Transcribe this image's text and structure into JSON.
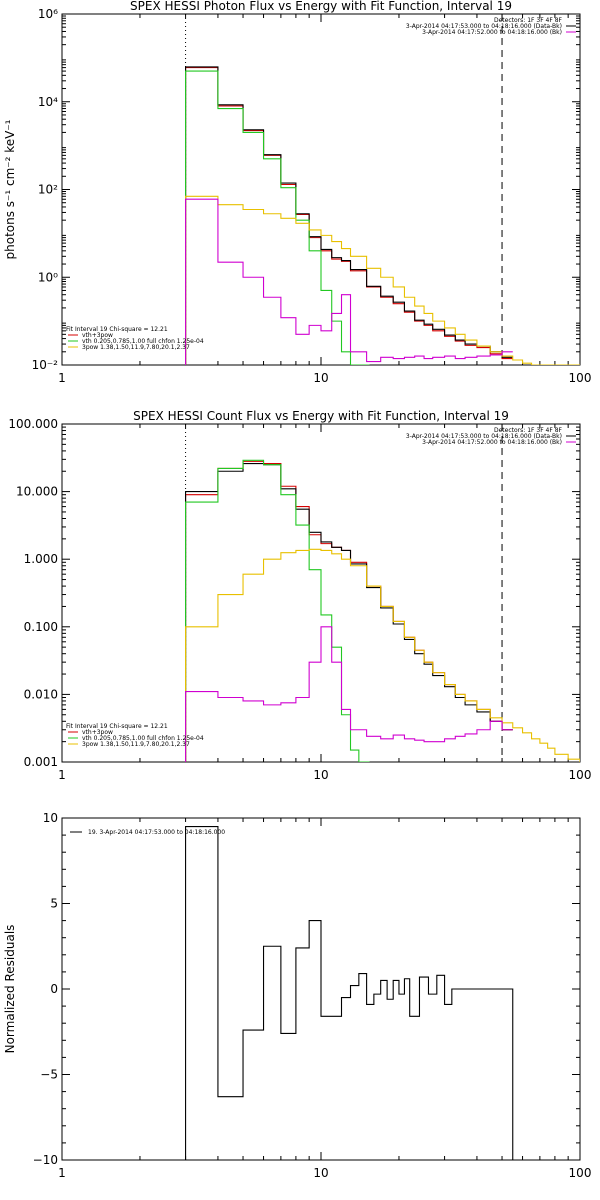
{
  "chart_data": [
    {
      "type": "line",
      "title": "SPEX HESSI Photon Flux vs Energy with Fit Function, Interval 19",
      "xlabel": "",
      "ylabel": "photons s⁻¹ cm⁻² keV⁻¹",
      "xscale": "log",
      "yscale": "log",
      "xlim": [
        1,
        100
      ],
      "ylim": [
        0.01,
        1000000
      ],
      "xticks": [
        "1",
        "10",
        "100"
      ],
      "yticks": [
        "10⁻²",
        "10⁰",
        "10²",
        "10⁴",
        "10⁶"
      ],
      "vlines": {
        "dotted": 3,
        "dashed": 50
      },
      "legend_right": [
        "Detectors: 1F 3F 4F 8F",
        "3-Apr-2014 04:17:53.000 to 04:18:16.000 (Data-Bk)",
        "3-Apr-2014 04:17:52.000 to 04:18:16.000 (Bk)"
      ],
      "legend_left": [
        "Fit Interval 19   Chi-square = 12.21",
        "vth+3pow",
        "vth 0.205,0.785,1.00  full chfon 1.25e-04",
        "3pow 1.38,1.50,11.9,7.80,20.1,2.37"
      ],
      "series": [
        {
          "name": "vth+3pow",
          "color": "#d40000",
          "x": [
            3,
            4,
            5,
            6,
            7,
            8,
            9,
            10,
            11,
            12,
            13,
            15,
            17,
            19,
            21,
            23,
            25,
            27,
            30,
            33,
            36,
            40,
            45,
            50
          ],
          "y": [
            60000,
            8000,
            2200,
            600,
            130,
            27,
            8,
            4,
            2.6,
            2.3,
            1.4,
            0.6,
            0.35,
            0.25,
            0.16,
            0.1,
            0.08,
            0.06,
            0.045,
            0.035,
            0.028,
            0.025,
            0.018,
            0.014
          ]
        },
        {
          "name": "3-Apr-2014 04:17:53.000 to 04:18:16.000 (Data-Bk)",
          "color": "#000000",
          "x": [
            3,
            4,
            5,
            6,
            7,
            8,
            9,
            10,
            11,
            12,
            13,
            15,
            17,
            19,
            21,
            23,
            25,
            27,
            30,
            33,
            36,
            40,
            45,
            50
          ],
          "y": [
            62000,
            8500,
            2300,
            620,
            140,
            28,
            8.4,
            4.3,
            2.8,
            2.4,
            1.5,
            0.62,
            0.37,
            0.27,
            0.17,
            0.105,
            0.085,
            0.065,
            0.048,
            0.037,
            0.03,
            0.027,
            0.02,
            0.015
          ]
        },
        {
          "name": "vth 0.205,0.785,1.00  full chfon 1.25e-04",
          "color": "#22c822",
          "x": [
            3,
            4,
            5,
            6,
            7,
            8,
            9,
            10,
            11,
            12,
            13,
            14
          ],
          "y": [
            50000,
            7000,
            2000,
            500,
            110,
            20,
            4,
            0.5,
            0.1,
            0.02,
            0.01,
            0.01
          ]
        },
        {
          "name": "3pow 1.38,1.50,11.9,7.80,20.1,2.37",
          "color": "#e8c000",
          "x": [
            3,
            4,
            5,
            6,
            7,
            8,
            9,
            10,
            11,
            12,
            13,
            15,
            17,
            19,
            21,
            23,
            25,
            27,
            30,
            33,
            36,
            40,
            45,
            50,
            55,
            60,
            65,
            70,
            75,
            80,
            90,
            100
          ],
          "y": [
            70,
            45,
            35,
            28,
            22,
            17,
            12,
            9,
            6.5,
            4.5,
            3,
            1.6,
            1,
            0.6,
            0.35,
            0.22,
            0.15,
            0.1,
            0.07,
            0.05,
            0.037,
            0.027,
            0.02,
            0.016,
            0.013,
            0.011,
            0.01,
            0.01,
            0.01,
            0.01,
            0.01,
            0.01
          ]
        },
        {
          "name": "3-Apr-2014 04:17:52.000 to 04:18:16.000 (Bk)",
          "color": "#d000d0",
          "x": [
            3,
            4,
            5,
            6,
            7,
            8,
            9,
            10,
            11,
            12,
            13,
            15,
            17,
            19,
            21,
            23,
            25,
            27,
            30,
            33,
            36,
            40,
            45,
            50
          ],
          "y": [
            60,
            2.2,
            1,
            0.35,
            0.12,
            0.05,
            0.08,
            0.06,
            0.15,
            0.4,
            0.02,
            0.012,
            0.015,
            0.014,
            0.015,
            0.016,
            0.014,
            0.015,
            0.016,
            0.014,
            0.015,
            0.016,
            0.017,
            0.02
          ]
        }
      ]
    },
    {
      "type": "line",
      "title": "SPEX HESSI Count Flux vs Energy with Fit Function, Interval 19",
      "xlabel": "",
      "ylabel": "",
      "xscale": "log",
      "yscale": "log",
      "xlim": [
        1,
        100
      ],
      "ylim": [
        0.001,
        100
      ],
      "xticks": [
        "1",
        "10",
        "100"
      ],
      "yticks": [
        "0.001",
        "0.010",
        "0.100",
        "1.000",
        "10.000",
        "100.000"
      ],
      "vlines": {
        "dotted": 3,
        "dashed": 50
      },
      "legend_right": [
        "Detectors: 1F 3F 4F 8F",
        "3-Apr-2014 04:17:53.000 to 04:18:16.000 (Data-Bk)",
        "3-Apr-2014 04:17:52.000 to 04:18:16.000 (Bk)"
      ],
      "legend_left": [
        "Fit Interval 19   Chi-square = 12.21",
        "vth+3pow",
        "vth 0.205,0.785,1.00  full chfon 1.25e-04",
        "3pow 1.38,1.50,11.9,7.80,20.1,2.37"
      ],
      "series": [
        {
          "name": "vth+3pow",
          "color": "#d40000",
          "x": [
            3,
            4,
            5,
            6,
            7,
            8,
            9,
            10,
            11,
            12,
            13,
            15,
            17,
            19,
            21,
            23,
            25,
            27,
            30,
            33,
            36,
            40,
            45,
            50
          ],
          "y": [
            9,
            22,
            28,
            26,
            12,
            6,
            2.3,
            1.7,
            1.5,
            1.35,
            0.9,
            0.4,
            0.2,
            0.12,
            0.07,
            0.045,
            0.03,
            0.021,
            0.014,
            0.01,
            0.008,
            0.006,
            0.004,
            0.003
          ]
        },
        {
          "name": "3-Apr-2014 04:17:53.000 to 04:18:16.000 (Data-Bk)",
          "color": "#000000",
          "x": [
            3,
            4,
            5,
            6,
            7,
            8,
            9,
            10,
            11,
            12,
            13,
            15,
            17,
            19,
            21,
            23,
            25,
            27,
            30,
            33,
            36,
            40,
            45,
            50
          ],
          "y": [
            10,
            20,
            26,
            25,
            11,
            5.5,
            2.5,
            1.8,
            1.5,
            1.35,
            0.85,
            0.38,
            0.19,
            0.11,
            0.065,
            0.04,
            0.028,
            0.019,
            0.013,
            0.009,
            0.007,
            0.0055,
            0.004,
            0.003
          ]
        },
        {
          "name": "vth 0.205,0.785,1.00  full chfon 1.25e-04",
          "color": "#22c822",
          "x": [
            3,
            4,
            5,
            6,
            7,
            8,
            9,
            10,
            11,
            12,
            13,
            14
          ],
          "y": [
            7,
            22,
            29,
            25,
            9,
            3.2,
            0.7,
            0.15,
            0.05,
            0.005,
            0.0015,
            0.001
          ]
        },
        {
          "name": "3pow 1.38,1.50,11.9,7.80,20.1,2.37",
          "color": "#e8c000",
          "x": [
            3,
            4,
            5,
            6,
            7,
            8,
            9,
            10,
            11,
            12,
            13,
            15,
            17,
            19,
            21,
            23,
            25,
            27,
            30,
            33,
            36,
            40,
            45,
            50,
            55,
            60,
            65,
            70,
            75,
            80,
            90,
            100
          ],
          "y": [
            0.1,
            0.3,
            0.6,
            1.0,
            1.25,
            1.35,
            1.4,
            1.35,
            1.2,
            1.0,
            0.8,
            0.4,
            0.2,
            0.12,
            0.07,
            0.045,
            0.03,
            0.021,
            0.014,
            0.01,
            0.008,
            0.006,
            0.0045,
            0.0038,
            0.0032,
            0.0027,
            0.0022,
            0.0019,
            0.0016,
            0.0013,
            0.0011,
            0.001
          ]
        },
        {
          "name": "3-Apr-2014 04:17:52.000 to 04:18:16.000 (Bk)",
          "color": "#d000d0",
          "x": [
            3,
            4,
            5,
            6,
            7,
            8,
            9,
            10,
            11,
            12,
            13,
            15,
            17,
            19,
            21,
            23,
            25,
            27,
            30,
            33,
            36,
            40,
            45,
            50
          ],
          "y": [
            0.011,
            0.009,
            0.008,
            0.007,
            0.0075,
            0.009,
            0.03,
            0.1,
            0.03,
            0.006,
            0.003,
            0.0024,
            0.0022,
            0.0025,
            0.0022,
            0.0021,
            0.002,
            0.002,
            0.0022,
            0.0024,
            0.0026,
            0.003,
            0.004,
            0.003
          ]
        }
      ]
    },
    {
      "type": "line",
      "title": "",
      "xlabel": "",
      "ylabel": "Normalized Residuals",
      "xscale": "log",
      "yscale": "linear",
      "xlim": [
        1,
        100
      ],
      "ylim": [
        -10,
        10
      ],
      "xticks": [
        "1",
        "10",
        "100"
      ],
      "yticks": [
        "−10",
        "−5",
        "0",
        "5",
        "10"
      ],
      "legend": "19.  3-Apr-2014 04:17:53.000 to 04:18:16.000",
      "series": [
        {
          "name": "19.  3-Apr-2014 04:17:53.000 to 04:18:16.000",
          "color": "#000000",
          "x": [
            3,
            3.5,
            4,
            5,
            6,
            7,
            8,
            9,
            10,
            11,
            12,
            13,
            14,
            15,
            16,
            17,
            18,
            19,
            20,
            21,
            22,
            24,
            26,
            28,
            30,
            32,
            35,
            38,
            42,
            46,
            50
          ],
          "y": [
            9.5,
            9.5,
            -6.3,
            -2.4,
            2.5,
            -2.6,
            2.4,
            4.0,
            -1.6,
            -1.6,
            -0.5,
            0.2,
            0.9,
            -0.9,
            -0.3,
            0.5,
            -0.6,
            0.5,
            -0.3,
            0.6,
            -1.6,
            0.7,
            -0.3,
            0.8,
            -0.9,
            0.0,
            0.0,
            0.0,
            0.0,
            0.0,
            0.0
          ]
        }
      ]
    }
  ]
}
